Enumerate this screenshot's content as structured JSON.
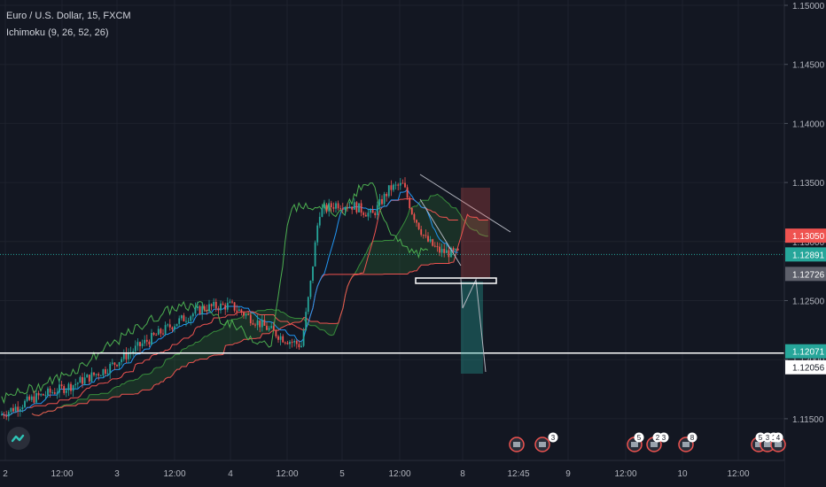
{
  "legend": {
    "symbol": "Euro / U.S. Dollar, 15, FXCM",
    "indicator": "Ichimoku (9, 26, 52, 26)"
  },
  "colors": {
    "background": "#131722",
    "grid": "#1e222d",
    "up": "#26a69a",
    "down": "#ef5350",
    "tenkan": "#2196f3",
    "kijun": "#ef5350",
    "chikou": "#4caf50",
    "span_a": "#388e3c",
    "span_b": "#ef5350",
    "level": "#ffffff",
    "trendline": "#b2b5be"
  },
  "chart_data": {
    "type": "candlestick",
    "y_axis_ticks": [
      "1.15000",
      "1.14500",
      "1.14000",
      "1.13500",
      "1.13000",
      "1.12500",
      "1.12000",
      "1.11500"
    ],
    "y_axis_values": [
      1.15,
      1.145,
      1.14,
      1.135,
      1.13,
      1.125,
      1.12,
      1.115
    ],
    "x_axis_ticks": [
      "2",
      "12:00",
      "3",
      "12:00",
      "4",
      "12:00",
      "5",
      "12:00",
      "8",
      "12:45",
      "9",
      "12:00",
      "10",
      "12:00"
    ],
    "price_labels": [
      {
        "value": "1.13050",
        "price": 1.1305,
        "style": "down"
      },
      {
        "value": "1.12891",
        "price": 1.12891,
        "style": "current"
      },
      {
        "value": "1.12726",
        "price": 1.12726,
        "style": "gray"
      },
      {
        "value": "1.12071",
        "price": 1.12071,
        "style": "up"
      },
      {
        "value": "1.12056",
        "price": 1.12056,
        "style": "level"
      }
    ],
    "horizontal_level": 1.12056,
    "current_price": 1.12891,
    "approx_path": [
      [
        0,
        1.1153
      ],
      [
        40,
        1.1168
      ],
      [
        80,
        1.1178
      ],
      [
        120,
        1.1192
      ],
      [
        160,
        1.1213
      ],
      [
        200,
        1.1232
      ],
      [
        230,
        1.1244
      ],
      [
        260,
        1.1246
      ],
      [
        290,
        1.1232
      ],
      [
        320,
        1.1218
      ],
      [
        340,
        1.1212
      ],
      [
        350,
        1.1262
      ],
      [
        360,
        1.1325
      ],
      [
        380,
        1.1332
      ],
      [
        400,
        1.133
      ],
      [
        420,
        1.1322
      ],
      [
        440,
        1.1345
      ],
      [
        455,
        1.1348
      ],
      [
        465,
        1.1325
      ],
      [
        480,
        1.1302
      ],
      [
        495,
        1.1292
      ],
      [
        510,
        1.129
      ],
      [
        520,
        1.129
      ]
    ],
    "event_badges": [
      "3",
      "5",
      "2",
      "3",
      "8",
      "5",
      "3",
      "1",
      "4"
    ]
  }
}
